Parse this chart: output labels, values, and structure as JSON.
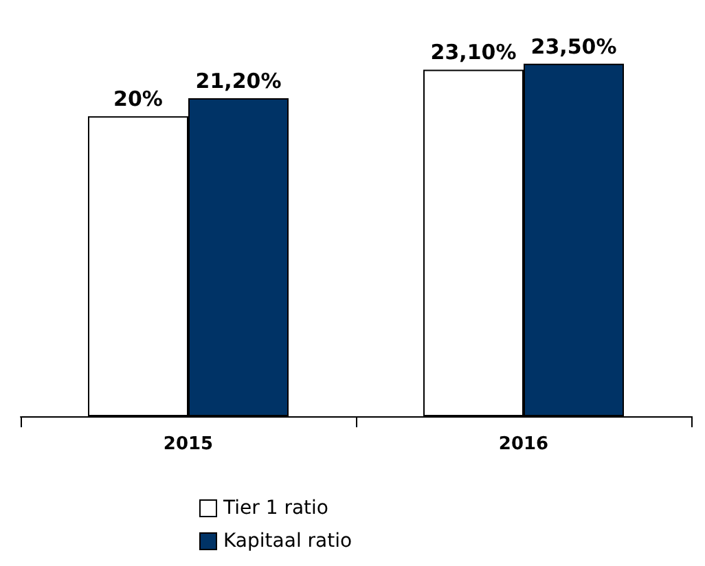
{
  "chart_data": {
    "type": "bar",
    "categories": [
      "2015",
      "2016"
    ],
    "series": [
      {
        "name": "Tier 1 ratio",
        "color": "#ffffff",
        "values": [
          20,
          23.1
        ],
        "value_labels": [
          "20%",
          "23,10%"
        ]
      },
      {
        "name": "Kapitaal ratio",
        "color": "#003366",
        "values": [
          21.2,
          23.5
        ],
        "value_labels": [
          "21,20%",
          "23,50%"
        ]
      }
    ],
    "legend": "bottom",
    "grid": false
  }
}
